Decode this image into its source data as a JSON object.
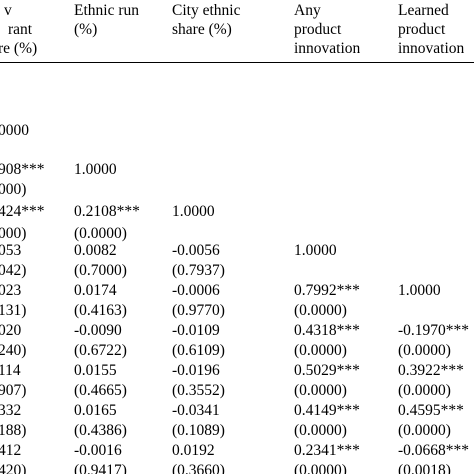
{
  "table": {
    "columns": [
      {
        "lines": [
          "v",
          "rant",
          "re (%)"
        ]
      },
      {
        "lines": [
          "Ethnic run",
          "(%)"
        ]
      },
      {
        "lines": [
          "City ethnic",
          "share (%)"
        ]
      },
      {
        "lines": [
          "Any",
          "product",
          "innovation"
        ]
      },
      {
        "lines": [
          "Learned",
          "product",
          "innovation"
        ]
      }
    ],
    "rows": [
      {
        "cells": [
          "0000",
          "",
          "",
          "",
          ""
        ]
      },
      {
        "cells": [
          "908***",
          "1.0000",
          "",
          "",
          ""
        ]
      },
      {
        "cells": [
          "000)",
          "",
          "",
          "",
          ""
        ]
      },
      {
        "cells": [
          "424***",
          "0.2108***",
          "1.0000",
          "",
          ""
        ]
      },
      {
        "cells": [
          "000)",
          "(0.0000)",
          "",
          "",
          ""
        ]
      },
      {
        "cells": [
          "053",
          "0.0082",
          "-0.0056",
          "1.0000",
          ""
        ]
      },
      {
        "cells": [
          "042)",
          "(0.7000)",
          "(0.7937)",
          "",
          ""
        ]
      },
      {
        "cells": [
          "023",
          "0.0174",
          "-0.0006",
          "0.7992***",
          "1.0000"
        ]
      },
      {
        "cells": [
          "131)",
          "(0.4163)",
          "(0.9770)",
          "(0.0000)",
          ""
        ]
      },
      {
        "cells": [
          "020",
          "-0.0090",
          "-0.0109",
          "0.4318***",
          "-0.1970***"
        ]
      },
      {
        "cells": [
          "240)",
          "(0.6722)",
          "(0.6109)",
          "(0.0000)",
          "(0.0000)"
        ]
      },
      {
        "cells": [
          "114",
          "0.0155",
          "-0.0196",
          "0.5029***",
          "0.3922***"
        ]
      },
      {
        "cells": [
          "907)",
          "(0.4665)",
          "(0.3552)",
          "(0.0000)",
          "(0.0000)"
        ]
      },
      {
        "cells": [
          "332",
          "0.0165",
          "-0.0341",
          "0.4149***",
          "0.4595***"
        ]
      },
      {
        "cells": [
          "188)",
          "(0.4386)",
          "(0.1089)",
          "(0.0000)",
          "(0.0000)"
        ]
      },
      {
        "cells": [
          "412",
          "-0.0016",
          "0.0192",
          "0.2341***",
          "-0.0668***"
        ]
      },
      {
        "cells": [
          "420)",
          "(0.9417)",
          "(0.3660)",
          "(0.0000)",
          "(0.0018)"
        ]
      }
    ]
  }
}
